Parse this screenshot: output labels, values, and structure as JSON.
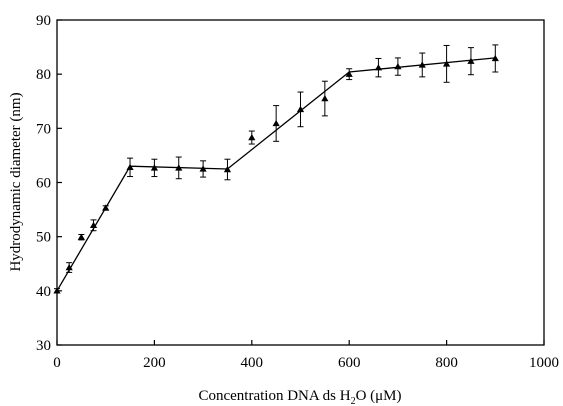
{
  "chart_data": {
    "type": "scatter",
    "title": "",
    "xlabel": "Concentration DNA ds H2O (μM)",
    "xlabel_parts": {
      "before": "Concentration DNA ds H",
      "sub": "2",
      "after": "O (μM)"
    },
    "ylabel": "Hydrodynamic diameter (nm)",
    "xlim": [
      0,
      1000
    ],
    "ylim": [
      30,
      90
    ],
    "xticks": [
      0,
      200,
      400,
      600,
      800,
      1000
    ],
    "yticks": [
      30,
      40,
      50,
      60,
      70,
      80,
      90
    ],
    "grid": false,
    "legend": "none",
    "marker": "triangle",
    "color": "#000000",
    "series": [
      {
        "points": [
          {
            "x": 0,
            "y": 40.0,
            "err": 0.4
          },
          {
            "x": 25,
            "y": 44.3,
            "err": 0.9
          },
          {
            "x": 50,
            "y": 49.9,
            "err": 0.5
          },
          {
            "x": 75,
            "y": 52.1,
            "err": 1.0
          },
          {
            "x": 100,
            "y": 55.3,
            "err": 0.4
          },
          {
            "x": 150,
            "y": 62.8,
            "err": 1.7
          },
          {
            "x": 200,
            "y": 62.7,
            "err": 1.6
          },
          {
            "x": 250,
            "y": 62.7,
            "err": 2.0
          },
          {
            "x": 300,
            "y": 62.5,
            "err": 1.5
          },
          {
            "x": 350,
            "y": 62.4,
            "err": 1.9
          },
          {
            "x": 400,
            "y": 68.3,
            "err": 1.2
          },
          {
            "x": 450,
            "y": 70.9,
            "err": 3.3
          },
          {
            "x": 500,
            "y": 73.5,
            "err": 3.2
          },
          {
            "x": 550,
            "y": 75.5,
            "err": 3.2
          },
          {
            "x": 600,
            "y": 80.0,
            "err": 1.0
          },
          {
            "x": 660,
            "y": 81.2,
            "err": 1.7
          },
          {
            "x": 700,
            "y": 81.4,
            "err": 1.6
          },
          {
            "x": 750,
            "y": 81.7,
            "err": 2.2
          },
          {
            "x": 800,
            "y": 81.9,
            "err": 3.4
          },
          {
            "x": 850,
            "y": 82.4,
            "err": 2.5
          },
          {
            "x": 900,
            "y": 82.9,
            "err": 2.5
          }
        ],
        "fit_line": [
          {
            "x": 0,
            "y": 40.0
          },
          {
            "x": 150,
            "y": 63.0
          },
          {
            "x": 350,
            "y": 62.5
          },
          {
            "x": 600,
            "y": 80.4
          },
          {
            "x": 900,
            "y": 83.0
          }
        ]
      }
    ]
  }
}
